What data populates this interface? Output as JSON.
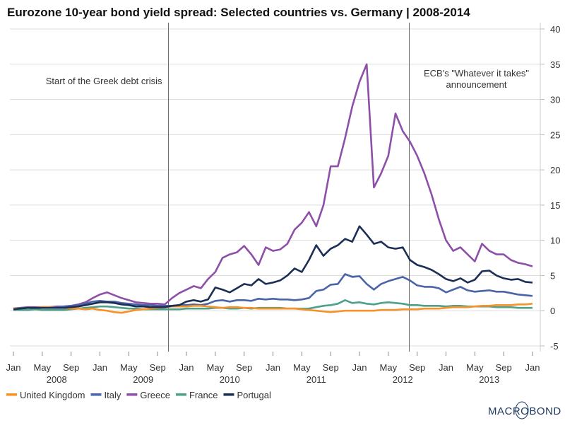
{
  "chart_data": {
    "type": "line",
    "title": "Eurozone 10-year bond yield spread: Selected countries vs. Germany | 2008-2014",
    "xlabel": "",
    "ylabel": "",
    "ylim": [
      -5,
      40
    ],
    "y_ticks": [
      "40",
      "35",
      "30",
      "25",
      "20",
      "15",
      "10",
      "5",
      "0",
      "-5"
    ],
    "y_axis_side": "right",
    "grid": true,
    "legend_position": "bottom-left",
    "x_tick_labels": [
      "Jan",
      "May",
      "Sep",
      "Jan",
      "May",
      "Sep",
      "Jan",
      "May",
      "Sep",
      "Jan",
      "May",
      "Sep",
      "Jan",
      "May",
      "Sep",
      "Jan",
      "May",
      "Sep",
      "Jan"
    ],
    "x_year_labels": [
      "2008",
      "2009",
      "2010",
      "2011",
      "2012",
      "2013"
    ],
    "x_range": [
      "2008-01",
      "2014-01"
    ],
    "annotations": [
      {
        "text": [
          "Start of the Greek debt crisis"
        ],
        "date": "2009-10-15"
      },
      {
        "text": [
          "ECB's \"Whatever it takes\"",
          "announcement"
        ],
        "date": "2012-07-26"
      }
    ],
    "x": [
      "2008-01",
      "2008-02",
      "2008-03",
      "2008-04",
      "2008-05",
      "2008-06",
      "2008-07",
      "2008-08",
      "2008-09",
      "2008-10",
      "2008-11",
      "2008-12",
      "2009-01",
      "2009-02",
      "2009-03",
      "2009-04",
      "2009-05",
      "2009-06",
      "2009-07",
      "2009-08",
      "2009-09",
      "2009-10",
      "2009-11",
      "2009-12",
      "2010-01",
      "2010-02",
      "2010-03",
      "2010-04",
      "2010-05",
      "2010-06",
      "2010-07",
      "2010-08",
      "2010-09",
      "2010-10",
      "2010-11",
      "2010-12",
      "2011-01",
      "2011-02",
      "2011-03",
      "2011-04",
      "2011-05",
      "2011-06",
      "2011-07",
      "2011-08",
      "2011-09",
      "2011-10",
      "2011-11",
      "2011-12",
      "2012-01",
      "2012-02",
      "2012-03",
      "2012-04",
      "2012-05",
      "2012-06",
      "2012-07",
      "2012-08",
      "2012-09",
      "2012-10",
      "2012-11",
      "2012-12",
      "2013-01",
      "2013-02",
      "2013-03",
      "2013-04",
      "2013-05",
      "2013-06",
      "2013-07",
      "2013-08",
      "2013-09",
      "2013-10",
      "2013-11",
      "2013-12",
      "2014-01"
    ],
    "series": [
      {
        "name": "United Kingdom",
        "color": "#f7922a",
        "values": [
          0.3,
          0.3,
          0.4,
          0.4,
          0.5,
          0.5,
          0.4,
          0.4,
          0.3,
          0.3,
          0.2,
          0.3,
          0.1,
          0.0,
          -0.2,
          -0.3,
          -0.1,
          0.1,
          0.2,
          0.3,
          0.4,
          0.5,
          0.6,
          0.6,
          0.6,
          0.7,
          0.7,
          0.6,
          0.5,
          0.4,
          0.5,
          0.5,
          0.4,
          0.4,
          0.3,
          0.3,
          0.3,
          0.3,
          0.3,
          0.3,
          0.2,
          0.1,
          0.0,
          -0.1,
          -0.2,
          -0.1,
          0.0,
          0.0,
          0.0,
          0.0,
          0.0,
          0.1,
          0.1,
          0.1,
          0.2,
          0.2,
          0.2,
          0.3,
          0.3,
          0.3,
          0.4,
          0.5,
          0.5,
          0.5,
          0.6,
          0.7,
          0.7,
          0.8,
          0.8,
          0.8,
          0.9,
          0.9,
          1.0
        ]
      },
      {
        "name": "Italy",
        "color": "#4a64a8",
        "values": [
          0.3,
          0.4,
          0.4,
          0.4,
          0.5,
          0.5,
          0.5,
          0.6,
          0.7,
          0.8,
          1.0,
          1.3,
          1.4,
          1.3,
          1.3,
          1.1,
          1.0,
          0.9,
          0.8,
          0.8,
          0.7,
          0.7,
          0.7,
          0.8,
          0.8,
          0.9,
          0.8,
          1.0,
          1.4,
          1.5,
          1.3,
          1.5,
          1.5,
          1.4,
          1.7,
          1.6,
          1.7,
          1.6,
          1.6,
          1.5,
          1.6,
          1.8,
          2.8,
          3.0,
          3.7,
          3.8,
          5.2,
          4.8,
          4.9,
          3.8,
          3.0,
          3.8,
          4.2,
          4.5,
          4.8,
          4.3,
          3.6,
          3.4,
          3.4,
          3.2,
          2.6,
          3.0,
          3.4,
          2.9,
          2.7,
          2.8,
          2.9,
          2.7,
          2.7,
          2.5,
          2.3,
          2.2,
          2.1
        ]
      },
      {
        "name": "Greece",
        "color": "#8e4fa8",
        "values": [
          0.3,
          0.4,
          0.5,
          0.5,
          0.5,
          0.5,
          0.6,
          0.6,
          0.7,
          0.9,
          1.2,
          1.8,
          2.3,
          2.6,
          2.2,
          1.8,
          1.5,
          1.2,
          1.1,
          1.0,
          1.0,
          0.9,
          1.8,
          2.5,
          3.0,
          3.5,
          3.2,
          4.5,
          5.5,
          7.5,
          8.0,
          8.3,
          9.2,
          8.0,
          6.5,
          9.0,
          8.5,
          8.7,
          9.5,
          11.5,
          12.5,
          14.0,
          12.0,
          15.0,
          20.5,
          20.5,
          24.5,
          29.0,
          32.5,
          35.0,
          17.5,
          19.5,
          22.0,
          28.0,
          25.5,
          24.0,
          22.0,
          19.5,
          16.5,
          13.0,
          10.0,
          8.5,
          9.0,
          8.0,
          7.0,
          9.5,
          8.5,
          8.0,
          8.0,
          7.2,
          6.8,
          6.6,
          6.3
        ]
      },
      {
        "name": "France",
        "color": "#4fa08b",
        "values": [
          0.1,
          0.1,
          0.1,
          0.2,
          0.1,
          0.1,
          0.1,
          0.1,
          0.2,
          0.3,
          0.4,
          0.5,
          0.6,
          0.6,
          0.5,
          0.4,
          0.3,
          0.3,
          0.2,
          0.2,
          0.2,
          0.2,
          0.2,
          0.2,
          0.3,
          0.3,
          0.3,
          0.3,
          0.4,
          0.4,
          0.3,
          0.3,
          0.4,
          0.3,
          0.4,
          0.4,
          0.4,
          0.4,
          0.3,
          0.3,
          0.3,
          0.3,
          0.5,
          0.7,
          0.8,
          1.0,
          1.5,
          1.1,
          1.2,
          1.0,
          0.9,
          1.1,
          1.2,
          1.1,
          1.0,
          0.8,
          0.8,
          0.7,
          0.7,
          0.7,
          0.6,
          0.7,
          0.7,
          0.6,
          0.6,
          0.6,
          0.6,
          0.5,
          0.5,
          0.5,
          0.4,
          0.4,
          0.4
        ]
      },
      {
        "name": "Portugal",
        "color": "#1b2f55",
        "values": [
          0.2,
          0.3,
          0.4,
          0.4,
          0.4,
          0.4,
          0.4,
          0.4,
          0.5,
          0.6,
          0.8,
          1.0,
          1.2,
          1.2,
          1.1,
          0.9,
          0.8,
          0.6,
          0.6,
          0.5,
          0.5,
          0.5,
          0.7,
          0.8,
          1.3,
          1.5,
          1.3,
          1.6,
          3.3,
          3.0,
          2.6,
          3.2,
          3.8,
          3.6,
          4.5,
          3.8,
          4.0,
          4.3,
          5.0,
          6.0,
          5.5,
          7.2,
          9.3,
          7.8,
          8.8,
          9.3,
          10.2,
          9.8,
          12.0,
          10.8,
          9.5,
          9.8,
          9.0,
          8.8,
          9.0,
          7.2,
          6.5,
          6.2,
          5.8,
          5.2,
          4.5,
          4.2,
          4.6,
          4.0,
          4.4,
          5.6,
          5.7,
          5.0,
          4.6,
          4.4,
          4.5,
          4.1,
          4.0
        ]
      }
    ]
  },
  "branding": {
    "logo": "MACROBOND"
  }
}
